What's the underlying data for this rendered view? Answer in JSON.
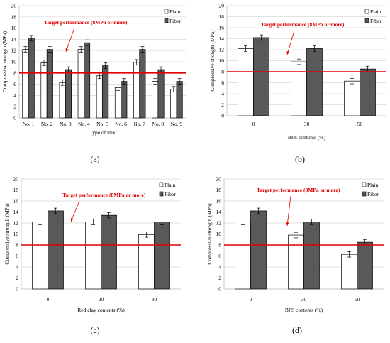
{
  "figure": {
    "colors": {
      "plain": "#ffffff",
      "fiber": "#595959",
      "bar_stroke": "#000000",
      "grid": "#d9d9d9",
      "target_line": "#e00000",
      "target_text": "#e00000",
      "text": "#000000"
    }
  },
  "chart_data": [
    {
      "panel": "(a)",
      "type": "bar",
      "xlabel": "Type of mix",
      "ylabel": "Compressive strength (MPa)",
      "ylim": [
        0,
        20
      ],
      "yticks": [
        0,
        2,
        4,
        6,
        8,
        10,
        12,
        14,
        16,
        18,
        20
      ],
      "grid": true,
      "legend_position": "top-right",
      "categories": [
        "No. 1",
        "No. 2",
        "No. 3",
        "No. 4",
        "No. 5",
        "No. 6",
        "No. 7",
        "No. 8",
        "No. 9"
      ],
      "series": [
        {
          "name": "Plain",
          "values": [
            12.2,
            9.8,
            6.3,
            12.2,
            7.5,
            5.4,
            9.9,
            6.5,
            5.1
          ],
          "errors": [
            0.5,
            0.5,
            0.5,
            0.5,
            0.5,
            0.5,
            0.5,
            0.5,
            0.5
          ]
        },
        {
          "name": "Fiber",
          "values": [
            14.2,
            12.2,
            8.6,
            13.4,
            9.3,
            6.5,
            12.2,
            8.6,
            6.5
          ],
          "errors": [
            0.5,
            0.5,
            0.5,
            0.5,
            0.5,
            0.5,
            0.5,
            0.5,
            0.5
          ]
        }
      ],
      "target_value": 8,
      "annotation": "Target performance (8MPa or more)"
    },
    {
      "panel": "(b)",
      "type": "bar",
      "xlabel": "BFS contents (%)",
      "ylabel": "Compressive strength (MPa)",
      "ylim": [
        0,
        20
      ],
      "yticks": [
        0,
        2,
        4,
        6,
        8,
        10,
        12,
        14,
        16,
        18,
        20
      ],
      "grid": true,
      "legend_position": "top-right",
      "categories": [
        "0",
        "30",
        "50"
      ],
      "series": [
        {
          "name": "Plain",
          "values": [
            12.2,
            9.8,
            6.3
          ],
          "errors": [
            0.5,
            0.5,
            0.5
          ]
        },
        {
          "name": "Fiber",
          "values": [
            14.2,
            12.2,
            8.5
          ],
          "errors": [
            0.5,
            0.5,
            0.5
          ]
        }
      ],
      "target_value": 8,
      "annotation": "Target performance (8MPa or more)"
    },
    {
      "panel": "(c)",
      "type": "bar",
      "xlabel": "Red clay contents (%)",
      "ylabel": "Compressive strength (MPa)",
      "ylim": [
        0,
        20
      ],
      "yticks": [
        0,
        2,
        4,
        6,
        8,
        10,
        12,
        14,
        16,
        18,
        20
      ],
      "grid": true,
      "legend_position": "top-right",
      "categories": [
        "0",
        "20",
        "30"
      ],
      "series": [
        {
          "name": "Plain",
          "values": [
            12.2,
            12.2,
            9.9
          ],
          "errors": [
            0.5,
            0.5,
            0.5
          ]
        },
        {
          "name": "Fiber",
          "values": [
            14.2,
            13.4,
            12.2
          ],
          "errors": [
            0.5,
            0.5,
            0.5
          ]
        }
      ],
      "target_value": 8,
      "annotation": "Target performance (8MPa or more)"
    },
    {
      "panel": "(d)",
      "type": "bar",
      "xlabel": "BFS contents (%)",
      "ylabel": "Compressive strength (MPa)",
      "ylim": [
        0,
        20
      ],
      "yticks": [
        0,
        2,
        4,
        6,
        8,
        10,
        12,
        14,
        16,
        18,
        20
      ],
      "grid": true,
      "legend_position": "top-right",
      "categories": [
        "0",
        "30",
        "50"
      ],
      "series": [
        {
          "name": "Plain",
          "values": [
            12.2,
            9.8,
            6.3
          ],
          "errors": [
            0.5,
            0.5,
            0.5
          ]
        },
        {
          "name": "Fiber",
          "values": [
            14.2,
            12.2,
            8.5
          ],
          "errors": [
            0.5,
            0.5,
            0.5
          ]
        }
      ],
      "target_value": 8,
      "annotation": "Target performance (8MPa or more)"
    }
  ]
}
